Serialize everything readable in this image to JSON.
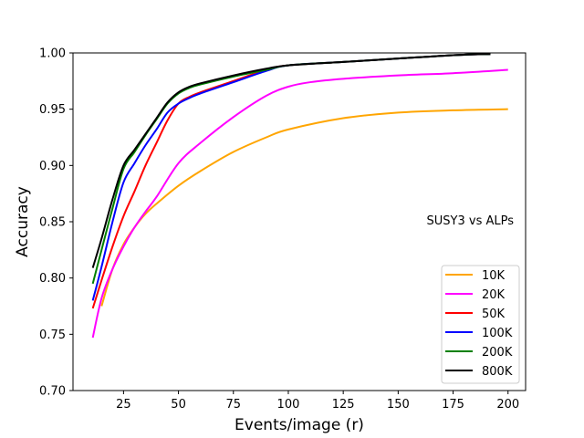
{
  "chart_data": {
    "type": "line",
    "title": "",
    "xlabel": "Events/image (r)",
    "ylabel": "Accuracy",
    "xlim": [
      2,
      208
    ],
    "ylim": [
      0.7,
      1.0
    ],
    "xticks": [
      25,
      50,
      75,
      100,
      125,
      150,
      175,
      200
    ],
    "yticks": [
      0.7,
      0.75,
      0.8,
      0.85,
      0.9,
      0.95,
      1.0
    ],
    "xtick_labels": [
      "25",
      "50",
      "75",
      "100",
      "125",
      "150",
      "175",
      "200"
    ],
    "ytick_labels": [
      "0.70",
      "0.75",
      "0.80",
      "0.85",
      "0.90",
      "0.95",
      "1.00"
    ],
    "grid": false,
    "legend_position": "lower-right",
    "annotation": "SUSY3 vs ALPs",
    "series": [
      {
        "name": "10K",
        "color": "#ffa500",
        "x": [
          15,
          20,
          25,
          30,
          35,
          40,
          50,
          60,
          75,
          90,
          100,
          125,
          150,
          175,
          200
        ],
        "y": [
          0.775,
          0.808,
          0.83,
          0.845,
          0.857,
          0.866,
          0.882,
          0.895,
          0.912,
          0.925,
          0.932,
          0.942,
          0.947,
          0.949,
          0.95
        ]
      },
      {
        "name": "20K",
        "color": "#ff00ff",
        "x": [
          11,
          15,
          20,
          25,
          30,
          35,
          40,
          50,
          60,
          75,
          90,
          100,
          110,
          125,
          150,
          175,
          200
        ],
        "y": [
          0.747,
          0.782,
          0.808,
          0.828,
          0.845,
          0.859,
          0.872,
          0.902,
          0.92,
          0.943,
          0.962,
          0.97,
          0.974,
          0.977,
          0.98,
          0.982,
          0.985
        ]
      },
      {
        "name": "50K",
        "color": "#ff0000",
        "x": [
          11,
          15,
          20,
          25,
          30,
          35,
          40,
          45,
          50,
          55,
          60,
          75,
          90,
          100,
          125,
          150,
          175,
          192
        ],
        "y": [
          0.773,
          0.798,
          0.828,
          0.855,
          0.877,
          0.9,
          0.92,
          0.94,
          0.955,
          0.961,
          0.965,
          0.975,
          0.985,
          0.989,
          0.992,
          0.995,
          0.998,
          0.999
        ]
      },
      {
        "name": "100K",
        "color": "#0000ff",
        "x": [
          11,
          15,
          20,
          25,
          30,
          35,
          40,
          45,
          50,
          55,
          60,
          75,
          90,
          100,
          125,
          150,
          175,
          192
        ],
        "y": [
          0.78,
          0.81,
          0.85,
          0.885,
          0.902,
          0.918,
          0.932,
          0.947,
          0.955,
          0.96,
          0.964,
          0.974,
          0.984,
          0.989,
          0.992,
          0.995,
          0.998,
          0.999
        ]
      },
      {
        "name": "200K",
        "color": "#008000",
        "x": [
          11,
          15,
          20,
          25,
          30,
          35,
          40,
          45,
          50,
          55,
          60,
          75,
          90,
          100,
          125,
          150,
          175,
          192
        ],
        "y": [
          0.795,
          0.825,
          0.862,
          0.897,
          0.912,
          0.927,
          0.941,
          0.955,
          0.964,
          0.969,
          0.972,
          0.979,
          0.985,
          0.989,
          0.992,
          0.995,
          0.998,
          0.999
        ]
      },
      {
        "name": "800K",
        "color": "#000000",
        "x": [
          11,
          15,
          20,
          25,
          30,
          35,
          40,
          45,
          50,
          55,
          60,
          75,
          90,
          100,
          125,
          150,
          175,
          192
        ],
        "y": [
          0.809,
          0.835,
          0.87,
          0.9,
          0.914,
          0.928,
          0.942,
          0.956,
          0.965,
          0.97,
          0.973,
          0.98,
          0.986,
          0.989,
          0.992,
          0.995,
          0.998,
          0.999
        ]
      }
    ]
  }
}
